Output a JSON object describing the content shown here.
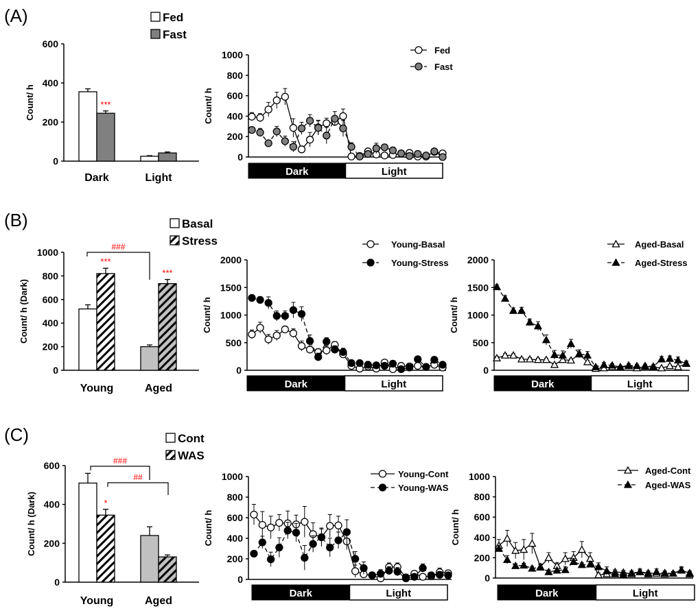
{
  "panel_labels": [
    "(A)",
    "(B)",
    "(C)"
  ],
  "chart_data": [
    {
      "type": "bar",
      "panel": "A",
      "ylabel": "Count/ h",
      "ylim": [
        0,
        600
      ],
      "ytick_step": 200,
      "categories": [
        "Dark",
        "Light"
      ],
      "series": [
        {
          "name": "Fed",
          "values": [
            355,
            25
          ],
          "err": [
            15,
            3
          ],
          "fill": "#ffffff",
          "hatch": false
        },
        {
          "name": "Fast",
          "values": [
            245,
            42
          ],
          "err": [
            12,
            5
          ],
          "fill": "#808080",
          "hatch": false
        }
      ],
      "annotations": [
        {
          "text": "***",
          "color": "#ff0000",
          "series": 1,
          "category": 0
        }
      ],
      "brackets": []
    },
    {
      "type": "line",
      "panel": "A",
      "ylabel": "Count/ h",
      "ylim": [
        0,
        1000
      ],
      "ytick_step": 200,
      "phase_labels": [
        "Dark",
        "Light"
      ],
      "series": [
        {
          "name": "Fed",
          "marker": "circle",
          "fill": "#ffffff",
          "dashed": false,
          "values": [
            395,
            385,
            465,
            555,
            590,
            285,
            75,
            170,
            290,
            330,
            345,
            400,
            5,
            10,
            55,
            25,
            15,
            20,
            35,
            40,
            5,
            5,
            50,
            35
          ],
          "err": [
            40,
            40,
            70,
            80,
            80,
            90,
            30,
            70,
            70,
            50,
            40,
            70,
            5,
            5,
            15,
            10,
            10,
            10,
            10,
            10,
            5,
            5,
            15,
            10
          ]
        },
        {
          "name": "Fast",
          "marker": "circle",
          "fill": "#808080",
          "dashed": true,
          "values": [
            265,
            240,
            135,
            250,
            155,
            100,
            280,
            355,
            285,
            210,
            375,
            280,
            100,
            5,
            30,
            85,
            95,
            65,
            35,
            10,
            30,
            15,
            55,
            0
          ],
          "err": [
            30,
            40,
            20,
            50,
            50,
            50,
            60,
            60,
            70,
            80,
            70,
            80,
            40,
            5,
            20,
            50,
            30,
            30,
            20,
            10,
            15,
            10,
            20,
            5
          ]
        }
      ]
    },
    {
      "type": "bar",
      "panel": "B",
      "ylabel": "Count/ h (Dark)",
      "ylim": [
        0,
        1000
      ],
      "ytick_step": 200,
      "categories": [
        "Young",
        "Aged"
      ],
      "series": [
        {
          "name": "Basal",
          "values": [
            520,
            200
          ],
          "err": [
            35,
            15
          ],
          "fill": [
            "#ffffff",
            "#c0c0c0"
          ],
          "hatch": false
        },
        {
          "name": "Stress",
          "values": [
            820,
            735
          ],
          "err": [
            45,
            35
          ],
          "fill": [
            "#ffffff",
            "#c0c0c0"
          ],
          "hatch": true
        }
      ],
      "annotations": [
        {
          "text": "***",
          "color": "#ff0000",
          "series": 1,
          "category": 0
        },
        {
          "text": "***",
          "color": "#ff0000",
          "series": 1,
          "category": 1
        }
      ],
      "brackets": [
        {
          "text": "###",
          "color": "#ff0000",
          "from": [
            "Young",
            "Basal"
          ],
          "to": [
            "Aged",
            "Basal"
          ]
        }
      ]
    },
    {
      "type": "line",
      "panel": "B",
      "ylabel": "Count/ h",
      "ylim": [
        0,
        2000
      ],
      "ytick_step": 500,
      "phase_labels": [
        "Dark",
        "Light"
      ],
      "series": [
        {
          "name": "Young-Basal",
          "marker": "circle",
          "fill": "#ffffff",
          "dashed": false,
          "values": [
            650,
            770,
            560,
            630,
            740,
            670,
            440,
            375,
            330,
            360,
            460,
            290,
            80,
            30,
            70,
            30,
            140,
            20,
            80,
            70,
            80,
            60,
            100,
            50
          ],
          "err": [
            80,
            100,
            90,
            90,
            60,
            80,
            90,
            60,
            60,
            80,
            60,
            40,
            30,
            20,
            30,
            20,
            30,
            20,
            20,
            20,
            30,
            20,
            30,
            20
          ]
        },
        {
          "name": "Young-Stress",
          "marker": "circle",
          "fill": "#000000",
          "dashed": true,
          "values": [
            1310,
            1275,
            1220,
            985,
            985,
            1090,
            1020,
            530,
            240,
            520,
            375,
            330,
            130,
            130,
            100,
            90,
            80,
            120,
            20,
            50,
            200,
            60,
            190,
            100
          ],
          "err": [
            40,
            60,
            110,
            90,
            90,
            140,
            130,
            110,
            70,
            70,
            70,
            70,
            40,
            30,
            30,
            30,
            30,
            30,
            20,
            20,
            50,
            20,
            40,
            30
          ]
        }
      ]
    },
    {
      "type": "line",
      "panel": "B",
      "ylabel": "Count/ h",
      "ylim": [
        0,
        2000
      ],
      "ytick_step": 500,
      "phase_labels": [
        "Dark",
        "Light"
      ],
      "series": [
        {
          "name": "Aged-Basal",
          "marker": "triangle",
          "fill": "#ffffff",
          "dashed": false,
          "values": [
            220,
            270,
            270,
            200,
            200,
            190,
            190,
            100,
            190,
            180,
            290,
            150,
            30,
            40,
            60,
            50,
            80,
            40,
            70,
            60,
            40,
            80,
            60,
            120
          ],
          "err": [
            30,
            30,
            30,
            30,
            30,
            30,
            30,
            30,
            30,
            30,
            40,
            30,
            10,
            10,
            10,
            10,
            10,
            10,
            10,
            10,
            10,
            20,
            20,
            30
          ]
        },
        {
          "name": "Aged-Stress",
          "marker": "triangle",
          "fill": "#000000",
          "dashed": true,
          "values": [
            1510,
            1300,
            1080,
            1080,
            870,
            800,
            550,
            280,
            270,
            480,
            300,
            270,
            60,
            100,
            90,
            60,
            90,
            80,
            80,
            70,
            200,
            210,
            180,
            120
          ],
          "err": [
            40,
            50,
            50,
            60,
            60,
            80,
            90,
            80,
            80,
            80,
            70,
            70,
            30,
            40,
            30,
            20,
            30,
            30,
            30,
            30,
            50,
            50,
            60,
            50
          ]
        }
      ]
    },
    {
      "type": "bar",
      "panel": "C",
      "ylabel": "Count/ h (Dark)",
      "ylim": [
        0,
        600
      ],
      "ytick_step": 200,
      "categories": [
        "Young",
        "Aged"
      ],
      "series": [
        {
          "name": "Cont",
          "values": [
            510,
            240
          ],
          "err": [
            50,
            45
          ],
          "fill": [
            "#ffffff",
            "#c0c0c0"
          ],
          "hatch": false
        },
        {
          "name": "WAS",
          "values": [
            345,
            130
          ],
          "err": [
            30,
            10
          ],
          "fill": [
            "#ffffff",
            "#c0c0c0"
          ],
          "hatch": true
        }
      ],
      "annotations": [
        {
          "text": "*",
          "color": "#ff0000",
          "series": 1,
          "category": 0
        }
      ],
      "brackets": [
        {
          "text": "###",
          "color": "#ff0000",
          "from": [
            "Young",
            "Cont"
          ],
          "to": [
            "Aged",
            "Cont"
          ]
        },
        {
          "text": "##",
          "color": "#ff0000",
          "from": [
            "Young",
            "WAS"
          ],
          "to": [
            "Aged",
            "WAS"
          ]
        }
      ]
    },
    {
      "type": "line",
      "panel": "C",
      "ylabel": "Count/ h",
      "ylim": [
        0,
        1000
      ],
      "ytick_step": 200,
      "phase_labels": [
        "Dark",
        "Light"
      ],
      "series": [
        {
          "name": "Young-Cont",
          "marker": "circle",
          "fill": "#ffffff",
          "dashed": false,
          "values": [
            630,
            530,
            505,
            550,
            545,
            535,
            560,
            440,
            410,
            520,
            525,
            370,
            80,
            50,
            40,
            10,
            120,
            120,
            20,
            55,
            25,
            30,
            70,
            60
          ],
          "err": [
            100,
            130,
            110,
            80,
            120,
            90,
            150,
            110,
            90,
            110,
            90,
            80,
            60,
            30,
            30,
            30,
            40,
            40,
            20,
            20,
            20,
            20,
            40,
            30
          ]
        },
        {
          "name": "Young-WAS",
          "marker": "circle",
          "fill": "#000000",
          "dashed": true,
          "values": [
            250,
            360,
            195,
            310,
            475,
            455,
            210,
            345,
            410,
            310,
            380,
            460,
            200,
            110,
            40,
            55,
            85,
            75,
            10,
            25,
            110,
            40,
            45,
            40
          ],
          "err": [
            30,
            60,
            70,
            95,
            80,
            90,
            120,
            80,
            80,
            90,
            80,
            120,
            70,
            60,
            30,
            40,
            40,
            40,
            10,
            20,
            40,
            30,
            30,
            20
          ]
        }
      ]
    },
    {
      "type": "line",
      "panel": "C",
      "ylabel": "Count/ h",
      "ylim": [
        0,
        1000
      ],
      "ytick_step": 200,
      "phase_labels": [
        "Dark",
        "Light"
      ],
      "series": [
        {
          "name": "Aged-Cont",
          "marker": "triangle",
          "fill": "#ffffff",
          "dashed": false,
          "values": [
            320,
            390,
            270,
            280,
            340,
            110,
            200,
            120,
            190,
            200,
            280,
            190,
            30,
            40,
            60,
            55,
            40,
            60,
            50,
            45,
            40,
            45,
            75,
            50
          ],
          "err": [
            60,
            80,
            80,
            100,
            100,
            30,
            50,
            30,
            60,
            60,
            80,
            60,
            20,
            20,
            20,
            20,
            20,
            20,
            20,
            20,
            20,
            20,
            30,
            20
          ]
        },
        {
          "name": "Aged-WAS",
          "marker": "triangle",
          "fill": "#000000",
          "dashed": true,
          "values": [
            290,
            180,
            120,
            125,
            95,
            105,
            60,
            75,
            80,
            160,
            130,
            135,
            110,
            70,
            40,
            35,
            50,
            60,
            40,
            60,
            50,
            45,
            80,
            40
          ],
          "err": [
            30,
            40,
            20,
            20,
            20,
            30,
            20,
            20,
            30,
            30,
            20,
            30,
            40,
            40,
            20,
            20,
            20,
            30,
            20,
            30,
            20,
            20,
            30,
            20
          ]
        }
      ]
    }
  ]
}
